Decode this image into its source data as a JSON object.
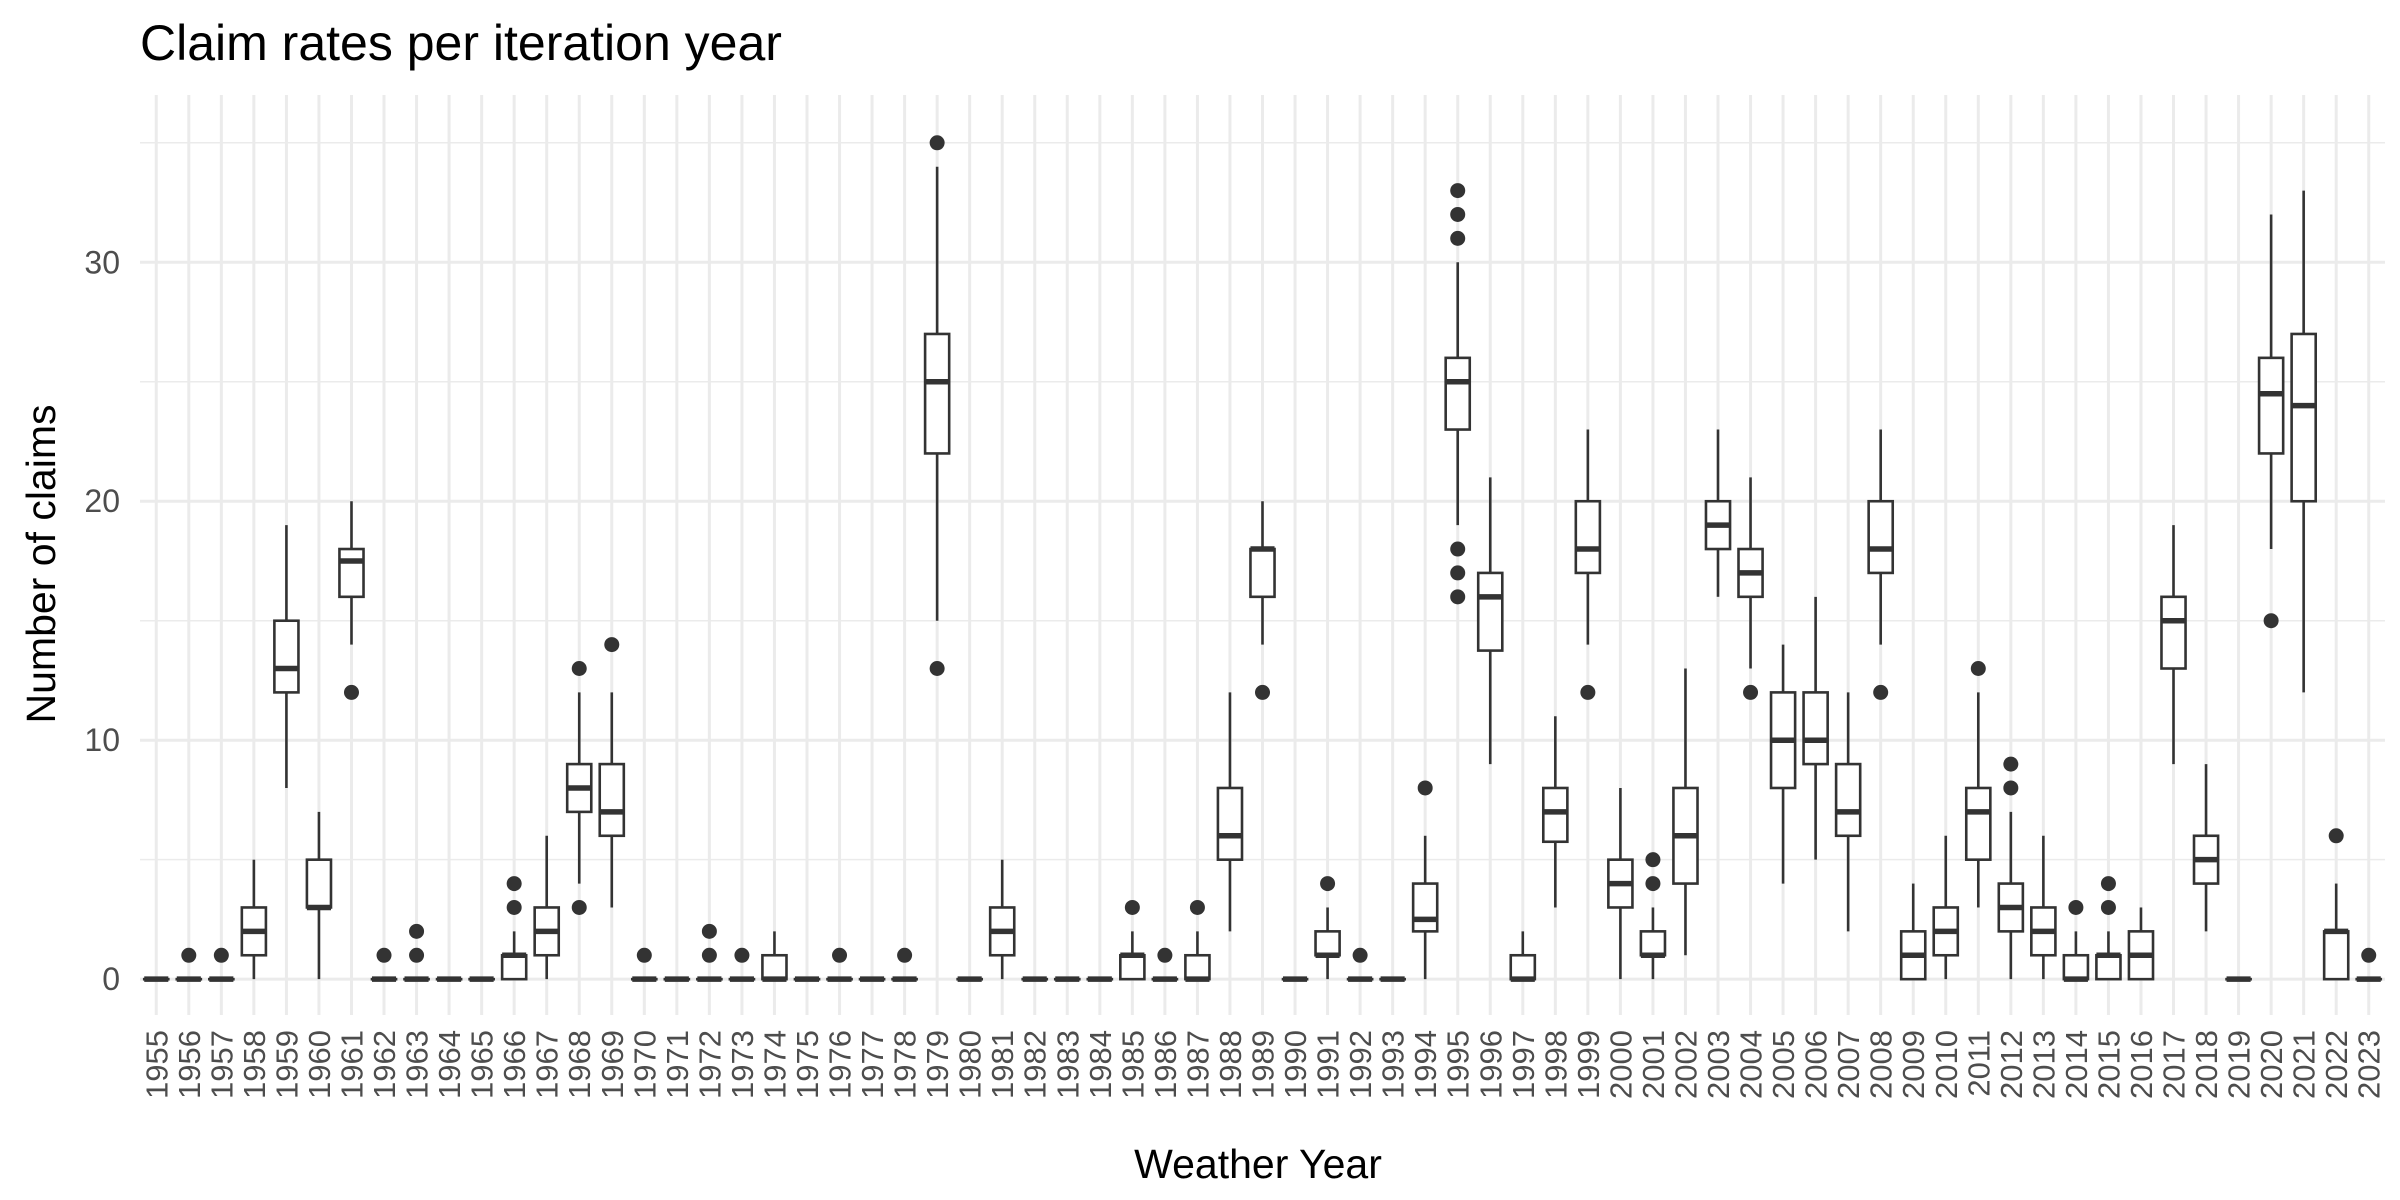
{
  "chart_data": {
    "type": "boxplot",
    "title": "Claim rates per iteration year",
    "xlabel": "Weather Year",
    "ylabel": "Number of claims",
    "ylim": [
      -1.5,
      37
    ],
    "y_ticks": [
      0,
      10,
      20,
      30
    ],
    "grid": true,
    "colors": {
      "box_stroke": "#333333",
      "box_fill": "#ffffff",
      "grid": "#ebebeb",
      "tick_text": "#4d4d4d"
    },
    "series": [
      {
        "year": "1955",
        "min": 0,
        "q1": 0,
        "median": 0,
        "q3": 0,
        "max": 0,
        "outliers": []
      },
      {
        "year": "1956",
        "min": 0,
        "q1": 0,
        "median": 0,
        "q3": 0,
        "max": 0,
        "outliers": [
          1
        ]
      },
      {
        "year": "1957",
        "min": 0,
        "q1": 0,
        "median": 0,
        "q3": 0,
        "max": 0,
        "outliers": [
          1
        ]
      },
      {
        "year": "1958",
        "min": 0,
        "q1": 1,
        "median": 2,
        "q3": 3,
        "max": 5,
        "outliers": []
      },
      {
        "year": "1959",
        "min": 8,
        "q1": 12,
        "median": 13,
        "q3": 15,
        "max": 19,
        "outliers": []
      },
      {
        "year": "1960",
        "min": 0,
        "q1": 3,
        "median": 3,
        "q3": 5,
        "max": 7,
        "outliers": []
      },
      {
        "year": "1961",
        "min": 14,
        "q1": 16,
        "median": 17.5,
        "q3": 18,
        "max": 20,
        "outliers": [
          12
        ]
      },
      {
        "year": "1962",
        "min": 0,
        "q1": 0,
        "median": 0,
        "q3": 0,
        "max": 0,
        "outliers": [
          1
        ]
      },
      {
        "year": "1963",
        "min": 0,
        "q1": 0,
        "median": 0,
        "q3": 0,
        "max": 0,
        "outliers": [
          1,
          2
        ]
      },
      {
        "year": "1964",
        "min": 0,
        "q1": 0,
        "median": 0,
        "q3": 0,
        "max": 0,
        "outliers": []
      },
      {
        "year": "1965",
        "min": 0,
        "q1": 0,
        "median": 0,
        "q3": 0,
        "max": 0,
        "outliers": []
      },
      {
        "year": "1966",
        "min": 0,
        "q1": 0,
        "median": 1,
        "q3": 1,
        "max": 2,
        "outliers": [
          3,
          4
        ]
      },
      {
        "year": "1967",
        "min": 0,
        "q1": 1,
        "median": 2,
        "q3": 3,
        "max": 6,
        "outliers": []
      },
      {
        "year": "1968",
        "min": 4,
        "q1": 7,
        "median": 8,
        "q3": 9,
        "max": 12,
        "outliers": [
          3,
          13
        ]
      },
      {
        "year": "1969",
        "min": 3,
        "q1": 6,
        "median": 7,
        "q3": 9,
        "max": 12,
        "outliers": [
          14
        ]
      },
      {
        "year": "1970",
        "min": 0,
        "q1": 0,
        "median": 0,
        "q3": 0,
        "max": 0,
        "outliers": [
          1
        ]
      },
      {
        "year": "1971",
        "min": 0,
        "q1": 0,
        "median": 0,
        "q3": 0,
        "max": 0,
        "outliers": []
      },
      {
        "year": "1972",
        "min": 0,
        "q1": 0,
        "median": 0,
        "q3": 0,
        "max": 0,
        "outliers": [
          1,
          2
        ]
      },
      {
        "year": "1973",
        "min": 0,
        "q1": 0,
        "median": 0,
        "q3": 0,
        "max": 0,
        "outliers": [
          1
        ]
      },
      {
        "year": "1974",
        "min": 0,
        "q1": 0,
        "median": 0,
        "q3": 1,
        "max": 2,
        "outliers": []
      },
      {
        "year": "1975",
        "min": 0,
        "q1": 0,
        "median": 0,
        "q3": 0,
        "max": 0,
        "outliers": []
      },
      {
        "year": "1976",
        "min": 0,
        "q1": 0,
        "median": 0,
        "q3": 0,
        "max": 0,
        "outliers": [
          1
        ]
      },
      {
        "year": "1977",
        "min": 0,
        "q1": 0,
        "median": 0,
        "q3": 0,
        "max": 0,
        "outliers": []
      },
      {
        "year": "1978",
        "min": 0,
        "q1": 0,
        "median": 0,
        "q3": 0,
        "max": 0,
        "outliers": [
          1
        ]
      },
      {
        "year": "1979",
        "min": 15,
        "q1": 22,
        "median": 25,
        "q3": 27,
        "max": 34,
        "outliers": [
          13,
          35
        ]
      },
      {
        "year": "1980",
        "min": 0,
        "q1": 0,
        "median": 0,
        "q3": 0,
        "max": 0,
        "outliers": []
      },
      {
        "year": "1981",
        "min": 0,
        "q1": 1,
        "median": 2,
        "q3": 3,
        "max": 5,
        "outliers": []
      },
      {
        "year": "1982",
        "min": 0,
        "q1": 0,
        "median": 0,
        "q3": 0,
        "max": 0,
        "outliers": []
      },
      {
        "year": "1983",
        "min": 0,
        "q1": 0,
        "median": 0,
        "q3": 0,
        "max": 0,
        "outliers": []
      },
      {
        "year": "1984",
        "min": 0,
        "q1": 0,
        "median": 0,
        "q3": 0,
        "max": 0,
        "outliers": []
      },
      {
        "year": "1985",
        "min": 0,
        "q1": 0,
        "median": 1,
        "q3": 1,
        "max": 2,
        "outliers": [
          3
        ]
      },
      {
        "year": "1986",
        "min": 0,
        "q1": 0,
        "median": 0,
        "q3": 0,
        "max": 0,
        "outliers": [
          1
        ]
      },
      {
        "year": "1987",
        "min": 0,
        "q1": 0,
        "median": 0,
        "q3": 1,
        "max": 2,
        "outliers": [
          3
        ]
      },
      {
        "year": "1988",
        "min": 2,
        "q1": 5,
        "median": 6,
        "q3": 8,
        "max": 12,
        "outliers": []
      },
      {
        "year": "1989",
        "min": 14,
        "q1": 16,
        "median": 18,
        "q3": 18,
        "max": 20,
        "outliers": [
          12
        ]
      },
      {
        "year": "1990",
        "min": 0,
        "q1": 0,
        "median": 0,
        "q3": 0,
        "max": 0,
        "outliers": []
      },
      {
        "year": "1991",
        "min": 0,
        "q1": 1,
        "median": 1,
        "q3": 2,
        "max": 3,
        "outliers": [
          4
        ]
      },
      {
        "year": "1992",
        "min": 0,
        "q1": 0,
        "median": 0,
        "q3": 0,
        "max": 0,
        "outliers": [
          1
        ]
      },
      {
        "year": "1993",
        "min": 0,
        "q1": 0,
        "median": 0,
        "q3": 0,
        "max": 0,
        "outliers": []
      },
      {
        "year": "1994",
        "min": 0,
        "q1": 2,
        "median": 2.5,
        "q3": 4,
        "max": 6,
        "outliers": [
          8
        ]
      },
      {
        "year": "1995",
        "min": 19,
        "q1": 23,
        "median": 25,
        "q3": 26,
        "max": 30,
        "outliers": [
          16,
          17,
          18,
          31,
          32,
          33
        ]
      },
      {
        "year": "1996",
        "min": 9,
        "q1": 13.75,
        "median": 16,
        "q3": 17,
        "max": 21,
        "outliers": []
      },
      {
        "year": "1997",
        "min": 0,
        "q1": 0,
        "median": 0,
        "q3": 1,
        "max": 2,
        "outliers": []
      },
      {
        "year": "1998",
        "min": 3,
        "q1": 5.75,
        "median": 7,
        "q3": 8,
        "max": 11,
        "outliers": []
      },
      {
        "year": "1999",
        "min": 14,
        "q1": 17,
        "median": 18,
        "q3": 20,
        "max": 23,
        "outliers": [
          12
        ]
      },
      {
        "year": "2000",
        "min": 0,
        "q1": 3,
        "median": 4,
        "q3": 5,
        "max": 8,
        "outliers": []
      },
      {
        "year": "2001",
        "min": 0,
        "q1": 1,
        "median": 1,
        "q3": 2,
        "max": 3,
        "outliers": [
          4,
          5
        ]
      },
      {
        "year": "2002",
        "min": 1,
        "q1": 4,
        "median": 6,
        "q3": 8,
        "max": 13,
        "outliers": []
      },
      {
        "year": "2003",
        "min": 16,
        "q1": 18,
        "median": 19,
        "q3": 20,
        "max": 23,
        "outliers": []
      },
      {
        "year": "2004",
        "min": 13,
        "q1": 16,
        "median": 17,
        "q3": 18,
        "max": 21,
        "outliers": [
          12
        ]
      },
      {
        "year": "2005",
        "min": 4,
        "q1": 8,
        "median": 10,
        "q3": 12,
        "max": 14,
        "outliers": []
      },
      {
        "year": "2006",
        "min": 5,
        "q1": 9,
        "median": 10,
        "q3": 12,
        "max": 16,
        "outliers": []
      },
      {
        "year": "2007",
        "min": 2,
        "q1": 6,
        "median": 7,
        "q3": 9,
        "max": 12,
        "outliers": []
      },
      {
        "year": "2008",
        "min": 14,
        "q1": 17,
        "median": 18,
        "q3": 20,
        "max": 23,
        "outliers": [
          12
        ]
      },
      {
        "year": "2009",
        "min": 0,
        "q1": 0,
        "median": 1,
        "q3": 2,
        "max": 4,
        "outliers": []
      },
      {
        "year": "2010",
        "min": 0,
        "q1": 1,
        "median": 2,
        "q3": 3,
        "max": 6,
        "outliers": []
      },
      {
        "year": "2011",
        "min": 3,
        "q1": 5,
        "median": 7,
        "q3": 8,
        "max": 12,
        "outliers": [
          13
        ]
      },
      {
        "year": "2012",
        "min": 0,
        "q1": 2,
        "median": 3,
        "q3": 4,
        "max": 7,
        "outliers": [
          8,
          9
        ]
      },
      {
        "year": "2013",
        "min": 0,
        "q1": 1,
        "median": 2,
        "q3": 3,
        "max": 6,
        "outliers": []
      },
      {
        "year": "2014",
        "min": 0,
        "q1": 0,
        "median": 0,
        "q3": 1,
        "max": 2,
        "outliers": [
          3
        ]
      },
      {
        "year": "2015",
        "min": 0,
        "q1": 0,
        "median": 1,
        "q3": 1,
        "max": 2,
        "outliers": [
          3,
          4
        ]
      },
      {
        "year": "2016",
        "min": 0,
        "q1": 0,
        "median": 1,
        "q3": 2,
        "max": 3,
        "outliers": []
      },
      {
        "year": "2017",
        "min": 9,
        "q1": 13,
        "median": 15,
        "q3": 16,
        "max": 19,
        "outliers": []
      },
      {
        "year": "2018",
        "min": 2,
        "q1": 4,
        "median": 5,
        "q3": 6,
        "max": 9,
        "outliers": []
      },
      {
        "year": "2019",
        "min": 0,
        "q1": 0,
        "median": 0,
        "q3": 0,
        "max": 0,
        "outliers": []
      },
      {
        "year": "2020",
        "min": 18,
        "q1": 22,
        "median": 24.5,
        "q3": 26,
        "max": 32,
        "outliers": [
          15
        ]
      },
      {
        "year": "2021",
        "min": 12,
        "q1": 20,
        "median": 24,
        "q3": 27,
        "max": 33,
        "outliers": []
      },
      {
        "year": "2022",
        "min": 0,
        "q1": 0,
        "median": 2,
        "q3": 2,
        "max": 4,
        "outliers": [
          6
        ]
      },
      {
        "year": "2023",
        "min": 0,
        "q1": 0,
        "median": 0,
        "q3": 0,
        "max": 0,
        "outliers": [
          1
        ]
      }
    ]
  }
}
